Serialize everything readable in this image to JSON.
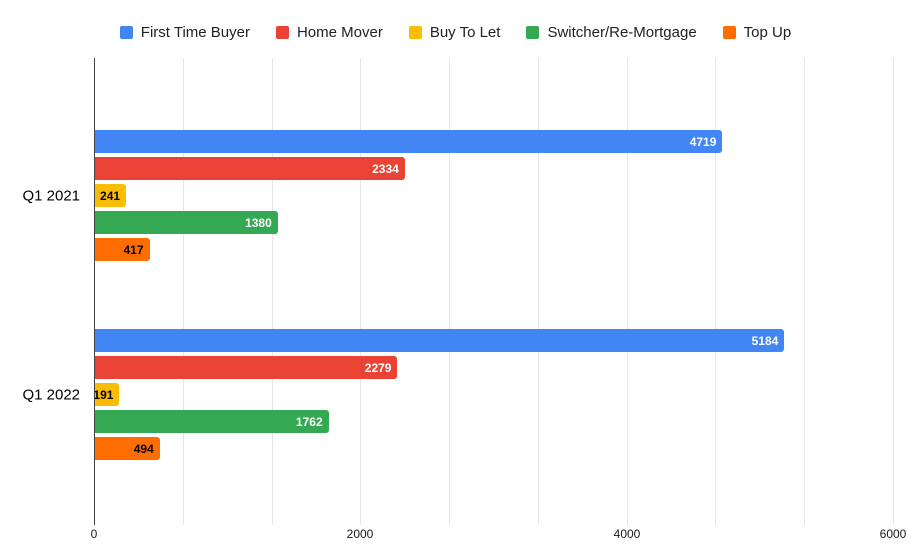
{
  "chart_data": {
    "type": "bar",
    "orientation": "horizontal",
    "title": "",
    "grid": true,
    "legend_position": "top",
    "categories": [
      "Q1 2021",
      "Q1 2022"
    ],
    "series": [
      {
        "name": "First Time Buyer",
        "color": "#4285F4",
        "label_color": "#ffffff",
        "values": [
          4719,
          5184
        ]
      },
      {
        "name": "Home Mover",
        "color": "#EA4335",
        "label_color": "#ffffff",
        "values": [
          2334,
          2279
        ]
      },
      {
        "name": "Buy To Let",
        "color": "#FBBC04",
        "label_color": "#000000",
        "values": [
          241,
          191
        ]
      },
      {
        "name": "Switcher/Re-Mortgage",
        "color": "#34A853",
        "label_color": "#ffffff",
        "values": [
          1380,
          1762
        ]
      },
      {
        "name": "Top Up",
        "color": "#FF6D00",
        "label_color": "#000000",
        "values": [
          417,
          494
        ]
      }
    ],
    "xaxis": {
      "min": 0,
      "max": 6000,
      "major_ticks": [
        0,
        2000,
        4000,
        6000
      ],
      "minor_divisions": 9
    },
    "colors": {
      "gridline": "#e6e6e6",
      "baseline": "#424242",
      "background": "#ffffff"
    }
  }
}
